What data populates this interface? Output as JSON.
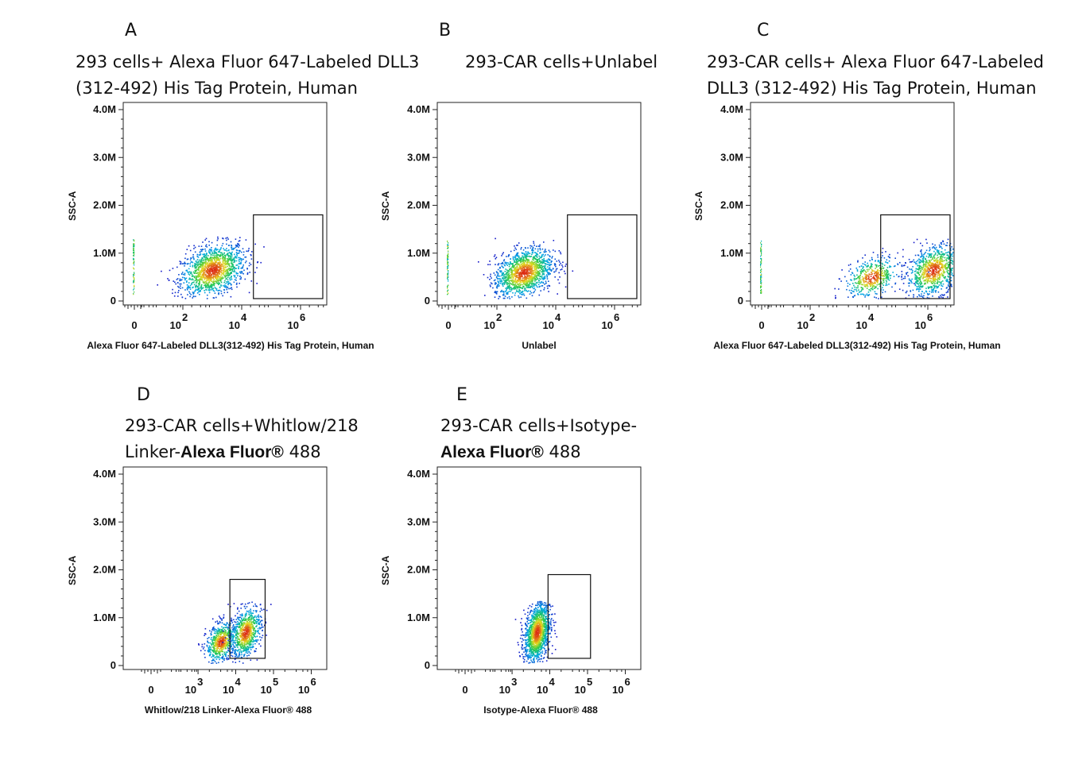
{
  "chart_data": [
    {
      "id": "A",
      "type": "scatter",
      "letter": "A",
      "title_lines": [
        "293 cells+ Alexa Fluor 647-Labeled DLL3",
        "(312-492) His Tag Protein, Human"
      ],
      "title_bold": "",
      "title_tail": "",
      "xlabel": "Alexa Fluor 647-Labeled DLL3(312-492) His Tag Protein, Human",
      "ylabel": "SSC-A",
      "x_scale": "biexponential",
      "x_tick_labels": [
        {
          "base": "0",
          "exp": ""
        },
        {
          "base": "10",
          "exp": "2"
        },
        {
          "base": "10",
          "exp": "4"
        },
        {
          "base": "10",
          "exp": "6"
        }
      ],
      "y_tick_labels": [
        "0",
        "1.0M",
        "2.0M",
        "3.0M",
        "4.0M"
      ],
      "ylim": [
        0,
        4000000
      ],
      "gate": {
        "x": [
          25000,
          9000000
        ],
        "y": [
          50000,
          1800000
        ]
      },
      "populations": [
        {
          "x_center": 1000,
          "y_center": 650000,
          "x_spread_decades": 0.55,
          "y_spread": 260000,
          "fraction": 1.0
        }
      ]
    },
    {
      "id": "B",
      "type": "scatter",
      "letter": "B",
      "title_lines": [
        "293-CAR cells+Unlabel"
      ],
      "title_bold": "",
      "title_tail": "",
      "xlabel": "Unlabel",
      "ylabel": "SSC-A",
      "x_scale": "biexponential",
      "x_tick_labels": [
        {
          "base": "0",
          "exp": ""
        },
        {
          "base": "10",
          "exp": "2"
        },
        {
          "base": "10",
          "exp": "4"
        },
        {
          "base": "10",
          "exp": "6"
        }
      ],
      "y_tick_labels": [
        "0",
        "1.0M",
        "2.0M",
        "3.0M",
        "4.0M"
      ],
      "ylim": [
        0,
        4000000
      ],
      "gate": {
        "x": [
          25000,
          9000000
        ],
        "y": [
          50000,
          1800000
        ]
      },
      "populations": [
        {
          "x_center": 800,
          "y_center": 600000,
          "x_spread_decades": 0.5,
          "y_spread": 250000,
          "fraction": 1.0
        }
      ]
    },
    {
      "id": "C",
      "type": "scatter",
      "letter": "C",
      "title_lines": [
        "293-CAR  cells+  Alexa  Fluor  647-Labeled",
        "DLL3 (312-492) His Tag Protein, Human"
      ],
      "title_bold": "",
      "title_tail": "",
      "xlabel": "Alexa Fluor 647-Labeled DLL3(312-492) His Tag Protein, Human",
      "ylabel": "SSC-A",
      "x_scale": "biexponential",
      "x_tick_labels": [
        {
          "base": "0",
          "exp": ""
        },
        {
          "base": "10",
          "exp": "2"
        },
        {
          "base": "10",
          "exp": "4"
        },
        {
          "base": "10",
          "exp": "6"
        }
      ],
      "y_tick_labels": [
        "0",
        "1.0M",
        "2.0M",
        "3.0M",
        "4.0M"
      ],
      "ylim": [
        0,
        4000000
      ],
      "gate": {
        "x": [
          25000,
          9000000
        ],
        "y": [
          50000,
          1800000
        ]
      },
      "populations": [
        {
          "x_center": 12000,
          "y_center": 500000,
          "x_spread_decades": 0.45,
          "y_spread": 200000,
          "fraction": 0.35
        },
        {
          "x_center": 1500000,
          "y_center": 650000,
          "x_spread_decades": 0.45,
          "y_spread": 250000,
          "fraction": 0.65
        }
      ]
    },
    {
      "id": "D",
      "type": "scatter",
      "letter": "D",
      "title_lines": [
        "293-CAR cells+Whitlow/218"
      ],
      "title_bold": "Alexa Fluor®",
      "title_tail": " 488",
      "title_second_prefix": "Linker-",
      "xlabel": "Whitlow/218 Linker-Alexa Fluor® 488",
      "ylabel": "SSC-A",
      "x_scale": "biexponential",
      "x_tick_labels": [
        {
          "base": "0",
          "exp": ""
        },
        {
          "base": "10",
          "exp": "3"
        },
        {
          "base": "10",
          "exp": "4"
        },
        {
          "base": "10",
          "exp": "5"
        },
        {
          "base": "10",
          "exp": "6"
        }
      ],
      "y_tick_labels": [
        "0",
        "1.0M",
        "2.0M",
        "3.0M",
        "4.0M"
      ],
      "ylim": [
        0,
        4000000
      ],
      "gate": {
        "x": [
          7000,
          60000
        ],
        "y": [
          150000,
          1800000
        ]
      },
      "populations": [
        {
          "x_center": 4000,
          "y_center": 500000,
          "x_spread_decades": 0.2,
          "y_spread": 200000,
          "fraction": 0.45
        },
        {
          "x_center": 18000,
          "y_center": 700000,
          "x_spread_decades": 0.2,
          "y_spread": 250000,
          "fraction": 0.55
        }
      ]
    },
    {
      "id": "E",
      "type": "scatter",
      "letter": "E",
      "title_lines": [
        "293-CAR cells+Isotype-"
      ],
      "title_bold": "Alexa Fluor®",
      "title_tail": " 488",
      "title_second_prefix": "",
      "xlabel": "Isotype-Alexa Fluor® 488",
      "ylabel": "SSC-A",
      "x_scale": "biexponential",
      "x_tick_labels": [
        {
          "base": "0",
          "exp": ""
        },
        {
          "base": "10",
          "exp": "3"
        },
        {
          "base": "10",
          "exp": "4"
        },
        {
          "base": "10",
          "exp": "5"
        },
        {
          "base": "10",
          "exp": "6"
        }
      ],
      "y_tick_labels": [
        "0",
        "1.0M",
        "2.0M",
        "3.0M",
        "4.0M"
      ],
      "ylim": [
        0,
        4000000
      ],
      "gate": {
        "x": [
          9000,
          120000
        ],
        "y": [
          150000,
          1900000
        ]
      },
      "populations": [
        {
          "x_center": 4500,
          "y_center": 700000,
          "x_spread_decades": 0.17,
          "y_spread": 300000,
          "fraction": 1.0
        }
      ]
    }
  ]
}
